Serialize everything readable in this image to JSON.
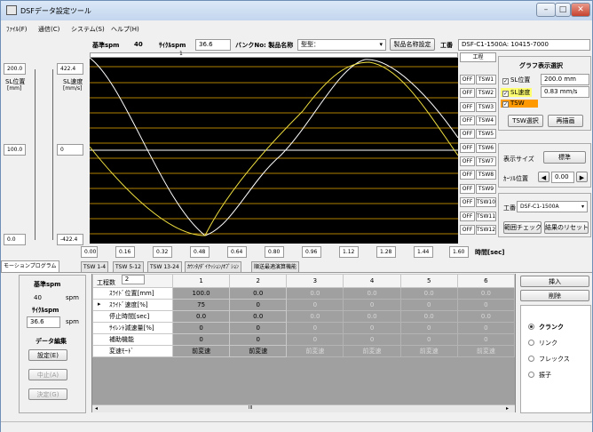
{
  "window": {
    "title": "DSFデータ設定ツール",
    "min": "–",
    "max": "□",
    "close": "✕"
  },
  "menu": [
    "ﾌｧｲﾙ(F)",
    "通信(C)",
    "システム(S)",
    "ヘルプ(H)"
  ],
  "header": {
    "spm_label": "基準spm",
    "spm_value": "40",
    "cycle_label": "ｻｲｸﾙspm",
    "cycle_value": "36.6",
    "bank_label": "バンクNo: 製品名称",
    "bank_value": "型型：",
    "product_btn": "製品名称設定",
    "work_label": "工番",
    "work_value": "DSF-C1-1500A: 10415-7000"
  },
  "left_axis": {
    "sl_top": "200.0",
    "sl_label": "SL位置",
    "sl_unit": "[mm]",
    "sl_mid": "100.0",
    "sl_bottom": "0.0",
    "sp_top": "422.4",
    "sp_label": "SL速度",
    "sp_unit": "[mm/s]",
    "sp_mid": "0",
    "sp_bottom": "-422.4"
  },
  "chart_marker": "1",
  "process_label": "工程",
  "time_ticks": [
    "0.00",
    "0.16",
    "0.32",
    "0.48",
    "0.64",
    "0.80",
    "0.96",
    "1.12",
    "1.28",
    "1.44",
    "1.60"
  ],
  "time_label": "時間[sec]",
  "tsw_off": "OFF",
  "tsw": [
    "TSW1",
    "TSW2",
    "TSW3",
    "TSW4",
    "TSW5",
    "TSW6",
    "TSW7",
    "TSW8",
    "TSW9",
    "TSW10",
    "TSW11",
    "TSW12"
  ],
  "graph_panel": {
    "title": "グラフ表示選択",
    "sl_pos": "SL位置",
    "sl_pos_val": "200.0 mm",
    "sl_speed": "SL速度",
    "sl_speed_val": "0.83 mm/s",
    "tsw": "TSW",
    "tsw_select": "TSW選択",
    "redraw": "再描画",
    "size_label": "表示サイズ",
    "size_btn": "標準",
    "cursor_label": "ｶｰｿﾙ位置",
    "cursor_val": "0.00",
    "work_label": "工番",
    "work_val": "DSF-C1-1500A",
    "range_check": "範囲チェック",
    "reset": "結果のリセット"
  },
  "tabs": [
    "モーションプログラム",
    "TSW 1-4",
    "TSW 5-12",
    "TSW 13-24",
    "ｶｳﾝﾀ/ﾀﾞｲｸｯｼｮﾝ/ｵﾌﾟｼｮﾝ",
    "順送最適演算機能"
  ],
  "side": {
    "spm_label": "基準spm",
    "spm_value": "40",
    "spm_unit": "spm",
    "cycle_label": "ｻｲｸﾙspm",
    "cycle_value": "36.6",
    "cycle_unit": "spm",
    "edit_title": "データ編集",
    "set_btn": "設定(E)",
    "stop_btn": "中止(A)",
    "decide_btn": "決定(G)"
  },
  "table": {
    "count_label": "工程数",
    "count_value": "2",
    "columns": [
      "1",
      "2",
      "3",
      "4",
      "5",
      "6"
    ],
    "rows": [
      {
        "label": "ｽﾗｲﾄﾞ位置[mm]",
        "values": [
          "100.0",
          "0.0",
          "0.0",
          "0.0",
          "0.0",
          "0.0"
        ]
      },
      {
        "label": "ｽﾗｲﾄﾞ速度[%]",
        "values": [
          "75",
          "0",
          "0",
          "0",
          "0",
          "0"
        ]
      },
      {
        "label": "停止時間[sec]",
        "values": [
          "0.0",
          "0.0",
          "0.0",
          "0.0",
          "0.0",
          "0.0"
        ]
      },
      {
        "label": "ｻｲﾚﾝﾄ減速量[%]",
        "values": [
          "0",
          "0",
          "0",
          "0",
          "0",
          "0"
        ]
      },
      {
        "label": "補助機能",
        "values": [
          "0",
          "0",
          "0",
          "0",
          "0",
          "0"
        ]
      },
      {
        "label": "変速ﾓｰﾄﾞ",
        "values": [
          "前変速",
          "前変速",
          "前変速",
          "前変速",
          "前変速",
          "前変速"
        ]
      }
    ],
    "scroll_mark": "III"
  },
  "right_side": {
    "insert": "挿入",
    "delete": "削除",
    "modes": [
      "クランク",
      "リンク",
      "フレックス",
      "振子"
    ]
  },
  "colors": {
    "chart_bg": "#000000",
    "grid": "#b08000",
    "pos_curve": "#ffffff",
    "speed_curve": "#f0e040",
    "tsw_hl": "#ff9900"
  }
}
